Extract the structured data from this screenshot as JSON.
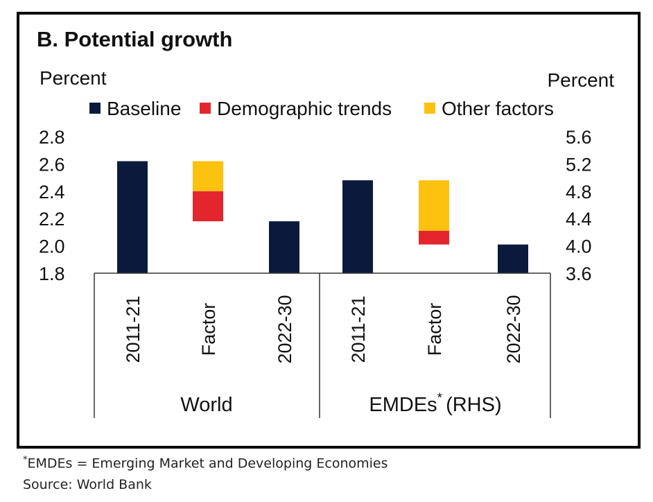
{
  "chart_data": {
    "type": "bar",
    "title": "B. Potential growth",
    "left_axis": {
      "unit_label": "Percent",
      "ticks": [
        "2.8",
        "2.6",
        "2.4",
        "2.2",
        "2.0",
        "1.8"
      ],
      "ylim": [
        1.8,
        2.8
      ]
    },
    "right_axis": {
      "unit_label": "Percent",
      "ticks": [
        "5.6",
        "5.2",
        "4.8",
        "4.4",
        "4.0",
        "3.6"
      ],
      "ylim": [
        3.6,
        5.6
      ]
    },
    "legend": [
      {
        "name": "Baseline",
        "color": "#0b1a3c"
      },
      {
        "name": "Demographic trends",
        "color": "#e3262e"
      },
      {
        "name": "Other factors",
        "color": "#fdc110"
      }
    ],
    "groups": [
      {
        "label": "World",
        "axis": "left",
        "categories": [
          "2011-21",
          "Factor",
          "2022-30"
        ],
        "baseline_start": 2.62,
        "demographic_trends": -0.22,
        "other_factors": -0.22,
        "baseline_end": 2.18
      },
      {
        "label": "EMDEs",
        "label_superscript": "*",
        "label_suffix": "(RHS)",
        "axis": "right",
        "categories": [
          "2011-21",
          "Factor",
          "2022-30"
        ],
        "baseline_start": 4.96,
        "demographic_trends": -0.2,
        "other_factors": -0.74,
        "baseline_end": 4.02
      }
    ]
  },
  "footnotes": {
    "note_marker": "*",
    "note": "EMDEs = Emerging Market and Developing Economies",
    "source": "Source: World Bank"
  }
}
